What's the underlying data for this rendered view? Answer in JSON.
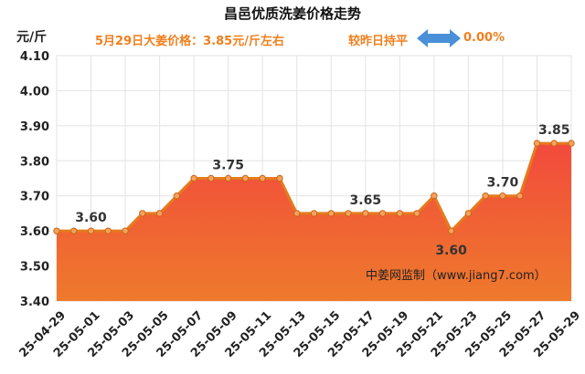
{
  "header": {
    "title": "昌邑优质洗姜价格走势",
    "unit": "元/斤",
    "price_line": "5月29日大姜价格：3.85元/斤左右",
    "compare_label": "较昨日持平",
    "compare_icon": "double-arrow-icon",
    "change_pct": "0.00%"
  },
  "colors": {
    "area_top": "#F24A3C",
    "area_bottom": "#EE7A2C",
    "line": "#E57B1E",
    "marker": "#F6A25A",
    "accent_text": "#F07F1E",
    "arrow": "#4A90D9"
  },
  "watermark": "中姜网监制（www.jiang7.com）",
  "chart_data": {
    "type": "area",
    "title": "昌邑优质洗姜价格走势",
    "ylabel": "元/斤",
    "ylim": [
      3.4,
      4.1
    ],
    "yticks": [
      "3.40",
      "3.50",
      "3.60",
      "3.70",
      "3.80",
      "3.90",
      "4.00",
      "4.10"
    ],
    "grid": true,
    "x": [
      "25-04-29",
      "25-04-30",
      "25-05-01",
      "25-05-02",
      "25-05-03",
      "25-05-04",
      "25-05-05",
      "25-05-06",
      "25-05-07",
      "25-05-08",
      "25-05-09",
      "25-05-10",
      "25-05-11",
      "25-05-12",
      "25-05-13",
      "25-05-14",
      "25-05-15",
      "25-05-16",
      "25-05-17",
      "25-05-18",
      "25-05-19",
      "25-05-20",
      "25-05-21",
      "25-05-22",
      "25-05-23",
      "25-05-24",
      "25-05-25",
      "25-05-26",
      "25-05-27",
      "25-05-28",
      "25-05-29"
    ],
    "xtick_labels": [
      "25-04-29",
      "25-05-01",
      "25-05-03",
      "25-05-05",
      "25-05-07",
      "25-05-09",
      "25-05-11",
      "25-05-13",
      "25-05-15",
      "25-05-17",
      "25-05-19",
      "25-05-21",
      "25-05-23",
      "25-05-25",
      "25-05-27",
      "25-05-29"
    ],
    "series": [
      {
        "values": [
          3.6,
          3.6,
          3.6,
          3.6,
          3.6,
          3.65,
          3.65,
          3.7,
          3.75,
          3.75,
          3.75,
          3.75,
          3.75,
          3.75,
          3.65,
          3.65,
          3.65,
          3.65,
          3.65,
          3.65,
          3.65,
          3.65,
          3.7,
          3.6,
          3.65,
          3.7,
          3.7,
          3.7,
          3.85,
          3.85,
          3.85
        ]
      }
    ],
    "data_labels": [
      {
        "x": "25-05-01",
        "text": "3.60"
      },
      {
        "x": "25-05-09",
        "text": "3.75"
      },
      {
        "x": "25-05-17",
        "text": "3.65"
      },
      {
        "x": "25-05-22",
        "text": "3.60",
        "below": true
      },
      {
        "x": "25-05-25",
        "text": "3.70"
      },
      {
        "x": "25-05-28",
        "text": "3.85"
      }
    ]
  }
}
